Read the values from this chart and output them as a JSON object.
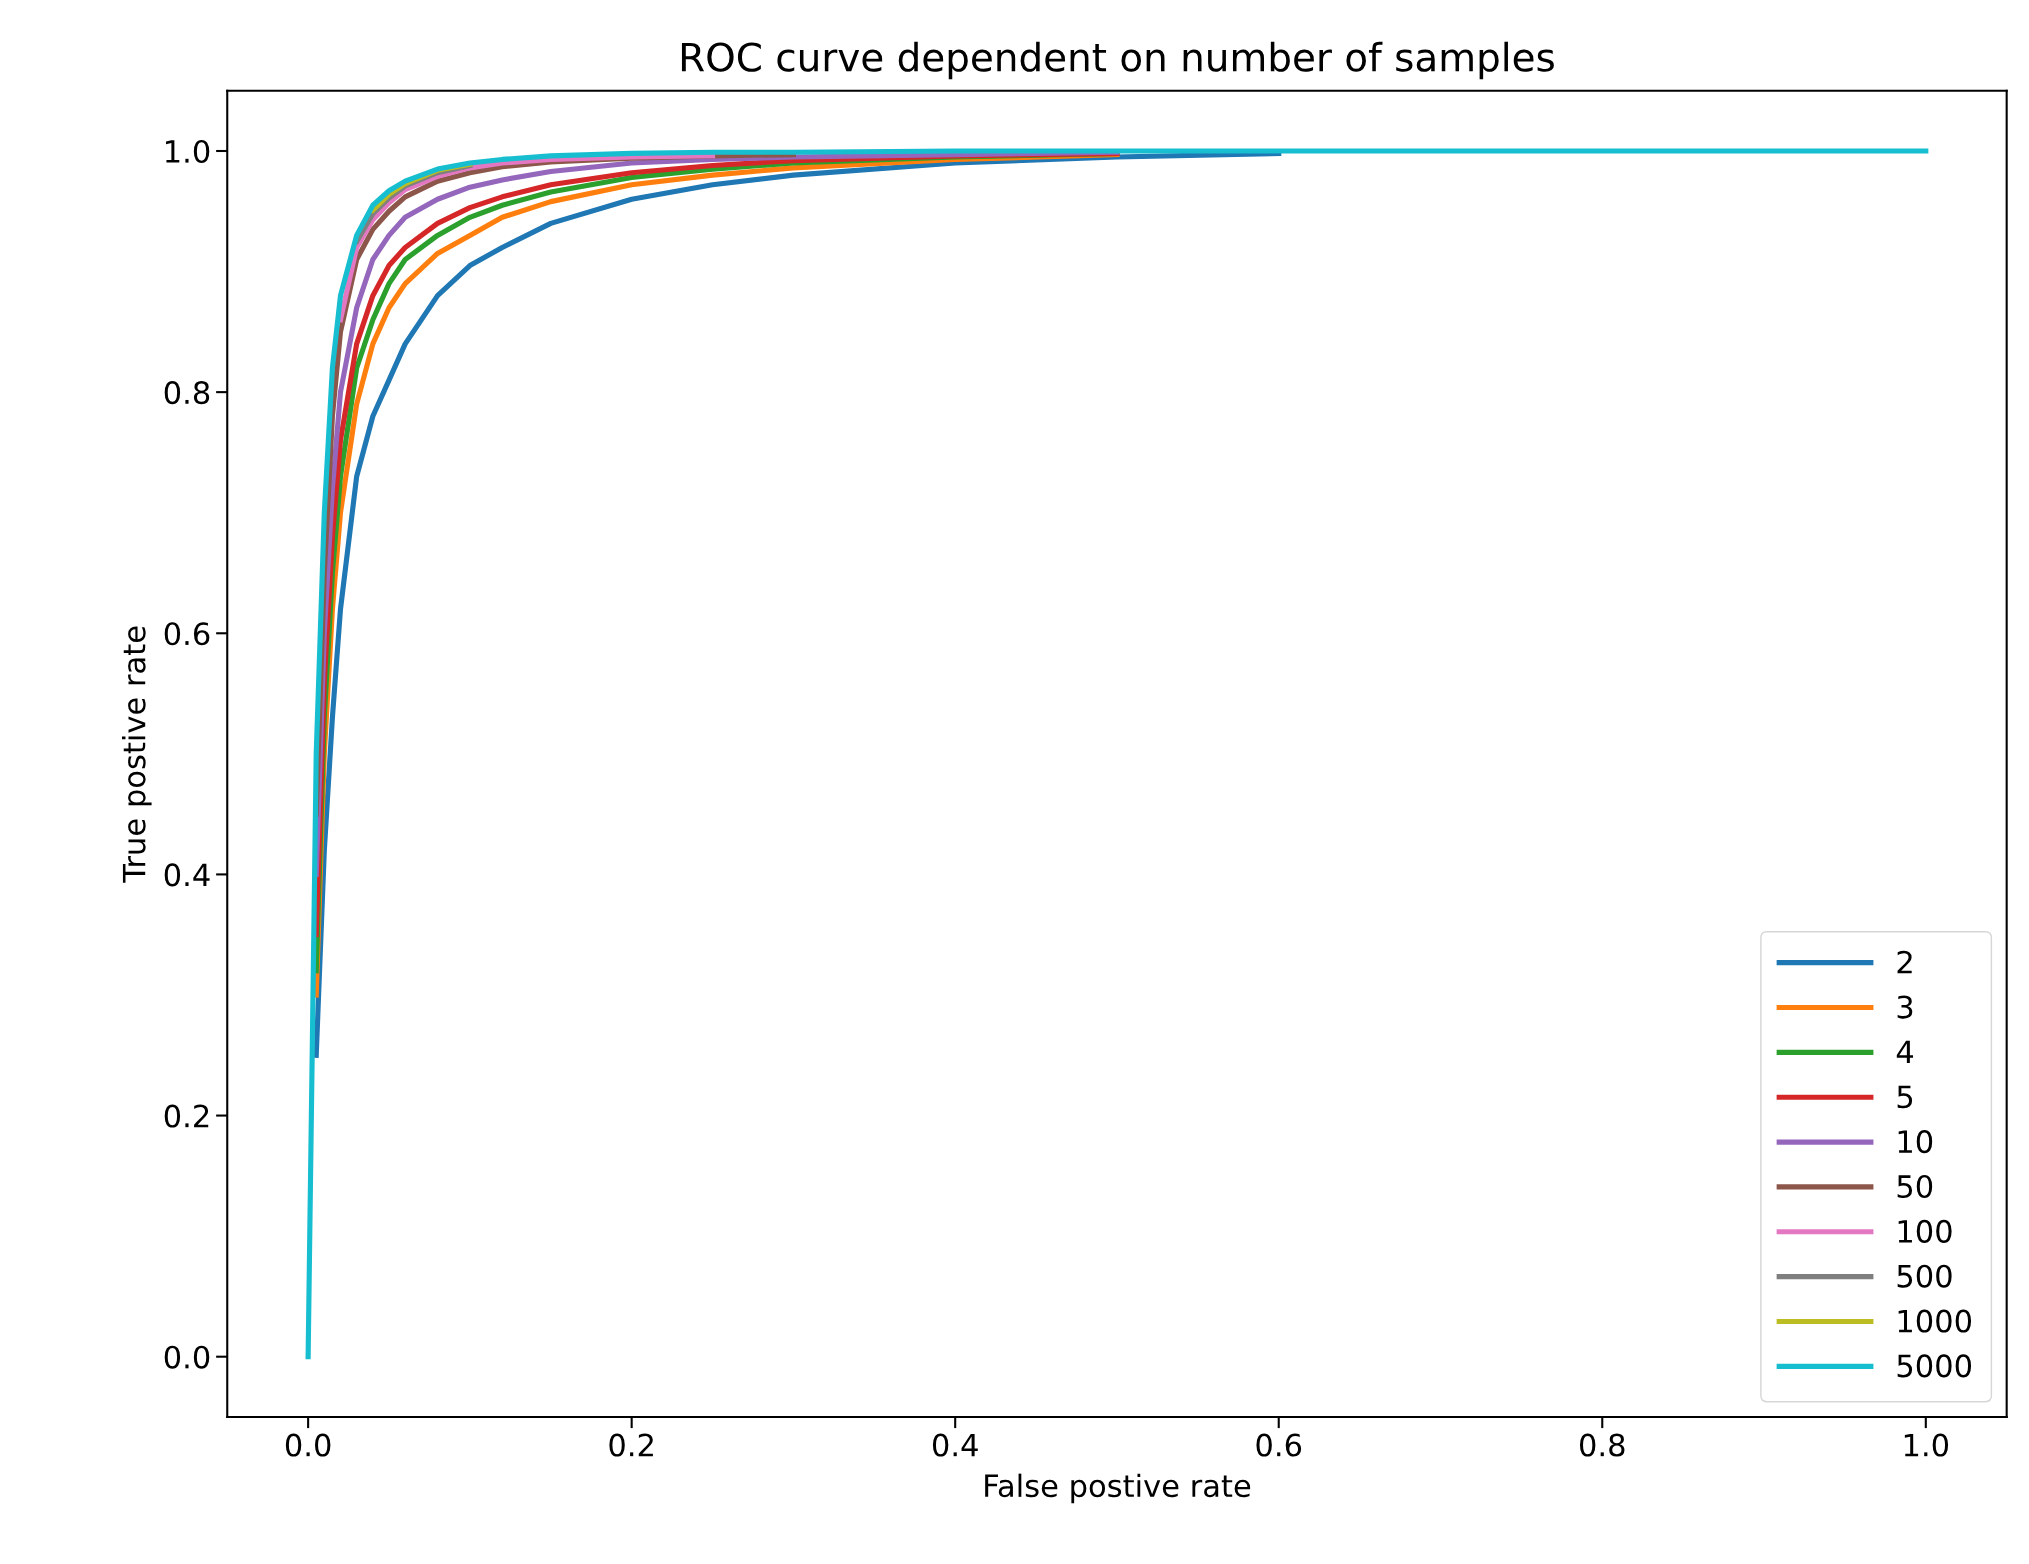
{
  "chart_data": {
    "type": "line",
    "title": "ROC curve dependent on number of samples",
    "xlabel": "False postive rate",
    "ylabel": "True postive rate",
    "x": [
      0,
      0.005,
      0.01,
      0.015,
      0.02,
      0.03,
      0.04,
      0.05,
      0.06,
      0.08,
      0.1,
      0.12,
      0.15,
      0.2,
      0.25,
      0.3,
      0.4,
      0.5,
      0.6,
      0.8,
      1.0
    ],
    "series": [
      {
        "name": "2",
        "color": "#1f77b4",
        "x": [
          0.005,
          0.01,
          0.015,
          0.02,
          0.03,
          0.04,
          0.05,
          0.06,
          0.08,
          0.1,
          0.12,
          0.15,
          0.2,
          0.25,
          0.3,
          0.4,
          0.5,
          0.6
        ],
        "values": [
          0.25,
          0.42,
          0.53,
          0.62,
          0.73,
          0.78,
          0.81,
          0.84,
          0.88,
          0.905,
          0.92,
          0.94,
          0.96,
          0.972,
          0.98,
          0.99,
          0.995,
          0.998
        ]
      },
      {
        "name": "3",
        "color": "#ff7f0e",
        "x": [
          0.005,
          0.01,
          0.015,
          0.02,
          0.03,
          0.04,
          0.05,
          0.06,
          0.08,
          0.1,
          0.12,
          0.15,
          0.2,
          0.25,
          0.3,
          0.4,
          0.5
        ],
        "values": [
          0.3,
          0.5,
          0.62,
          0.7,
          0.79,
          0.84,
          0.87,
          0.89,
          0.915,
          0.93,
          0.945,
          0.958,
          0.972,
          0.98,
          0.986,
          0.993,
          0.997
        ]
      },
      {
        "name": "4",
        "color": "#2ca02c",
        "x": [
          0.005,
          0.01,
          0.015,
          0.02,
          0.03,
          0.04,
          0.05,
          0.06,
          0.08,
          0.1,
          0.12,
          0.15,
          0.2,
          0.25,
          0.3,
          0.4,
          0.5
        ],
        "values": [
          0.32,
          0.53,
          0.65,
          0.73,
          0.82,
          0.86,
          0.89,
          0.91,
          0.93,
          0.945,
          0.955,
          0.966,
          0.978,
          0.985,
          0.99,
          0.995,
          0.998
        ]
      },
      {
        "name": "5",
        "color": "#d62728",
        "x": [
          0.005,
          0.01,
          0.015,
          0.02,
          0.03,
          0.04,
          0.05,
          0.06,
          0.08,
          0.1,
          0.12,
          0.15,
          0.2,
          0.25,
          0.3,
          0.4,
          0.5
        ],
        "values": [
          0.35,
          0.56,
          0.68,
          0.76,
          0.84,
          0.88,
          0.905,
          0.92,
          0.94,
          0.953,
          0.962,
          0.972,
          0.982,
          0.988,
          0.992,
          0.996,
          0.998
        ]
      },
      {
        "name": "10",
        "color": "#9467bd",
        "x": [
          0.005,
          0.01,
          0.015,
          0.02,
          0.03,
          0.04,
          0.05,
          0.06,
          0.08,
          0.1,
          0.12,
          0.15,
          0.2,
          0.25,
          0.3,
          0.4,
          0.5
        ],
        "values": [
          0.4,
          0.6,
          0.72,
          0.8,
          0.87,
          0.91,
          0.93,
          0.945,
          0.96,
          0.97,
          0.976,
          0.983,
          0.99,
          0.993,
          0.995,
          0.997,
          0.999
        ]
      },
      {
        "name": "50",
        "color": "#8c564b",
        "x": [
          0.005,
          0.01,
          0.015,
          0.02,
          0.03,
          0.04,
          0.05,
          0.06,
          0.08,
          0.1,
          0.12,
          0.15,
          0.2,
          0.25,
          0.3
        ],
        "values": [
          0.45,
          0.65,
          0.78,
          0.85,
          0.91,
          0.935,
          0.95,
          0.962,
          0.975,
          0.982,
          0.987,
          0.991,
          0.994,
          0.996,
          0.997
        ]
      },
      {
        "name": "100",
        "color": "#e377c2",
        "x": [
          0.02,
          0.03,
          0.04,
          0.05,
          0.06,
          0.08,
          0.1,
          0.12,
          0.15,
          0.2,
          0.25
        ],
        "values": [
          0.86,
          0.92,
          0.943,
          0.957,
          0.968,
          0.979,
          0.986,
          0.99,
          0.993,
          0.995,
          0.996
        ]
      },
      {
        "name": "500",
        "color": "#7f7f7f",
        "x": [
          0.03,
          0.04,
          0.05,
          0.06,
          0.08,
          0.1
        ],
        "values": [
          0.925,
          0.948,
          0.961,
          0.971,
          0.982,
          0.988
        ]
      },
      {
        "name": "1000",
        "color": "#bcbd22",
        "x": [
          0.04,
          0.05,
          0.06,
          0.08,
          0.1
        ],
        "values": [
          0.951,
          0.964,
          0.973,
          0.984,
          0.989
        ]
      },
      {
        "name": "5000",
        "color": "#17becf",
        "values": [
          0,
          0.5,
          0.7,
          0.82,
          0.88,
          0.93,
          0.955,
          0.967,
          0.975,
          0.985,
          0.99,
          0.993,
          0.996,
          0.998,
          0.999,
          0.999,
          1,
          1,
          1,
          1,
          1
        ]
      }
    ],
    "xlim": [
      -0.05,
      1.05
    ],
    "ylim": [
      -0.05,
      1.05
    ],
    "xticks": [
      {
        "value": 0,
        "label": "0.0"
      },
      0.2,
      0.4,
      0.6,
      0.8,
      {
        "value": 1,
        "label": "1.0"
      }
    ],
    "yticks": [
      {
        "value": 0,
        "label": "0.0"
      },
      0.2,
      0.4,
      0.6,
      0.8,
      {
        "value": 1,
        "label": "1.0"
      }
    ],
    "legend": "lower right",
    "grid": false
  }
}
